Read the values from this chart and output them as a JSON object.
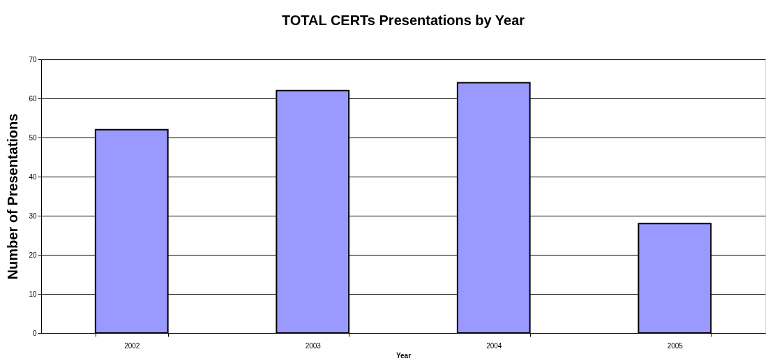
{
  "chart_data": {
    "type": "bar",
    "title": "TOTAL CERTs Presentations by Year",
    "xlabel": "Year",
    "ylabel": "Number of Presentations",
    "categories": [
      "2002",
      "2003",
      "2004",
      "2005"
    ],
    "values": [
      52,
      62,
      64,
      28
    ],
    "color": "#9999ff",
    "ylim": [
      0,
      70
    ],
    "yticks": [
      0,
      10,
      20,
      30,
      40,
      50,
      60,
      70
    ],
    "grid": "y"
  }
}
